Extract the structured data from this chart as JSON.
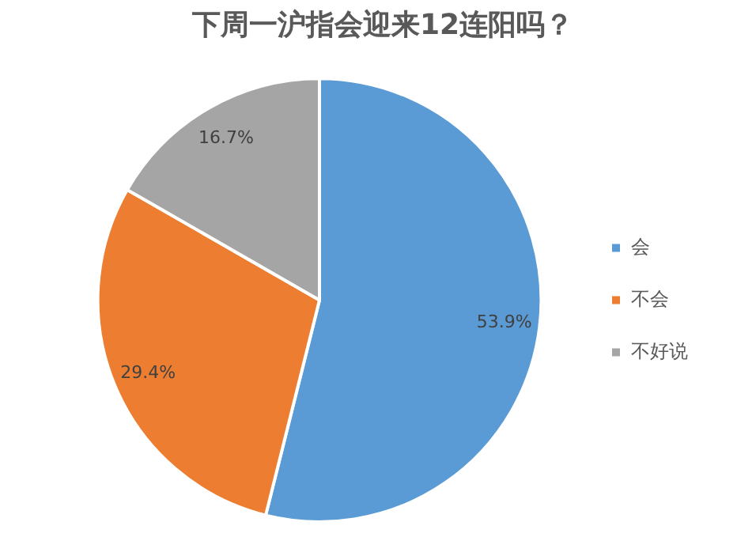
{
  "chart_data": {
    "type": "pie",
    "title": "下周一沪指会迎来12连阳吗？",
    "categories": [
      "会",
      "不会",
      "不好说"
    ],
    "values": [
      53.9,
      29.4,
      16.7
    ],
    "colors": [
      "#5b9bd5",
      "#ed7d31",
      "#a5a5a5"
    ],
    "value_labels": [
      "53.9%",
      "29.4%",
      "16.7%"
    ],
    "legend": "right"
  }
}
